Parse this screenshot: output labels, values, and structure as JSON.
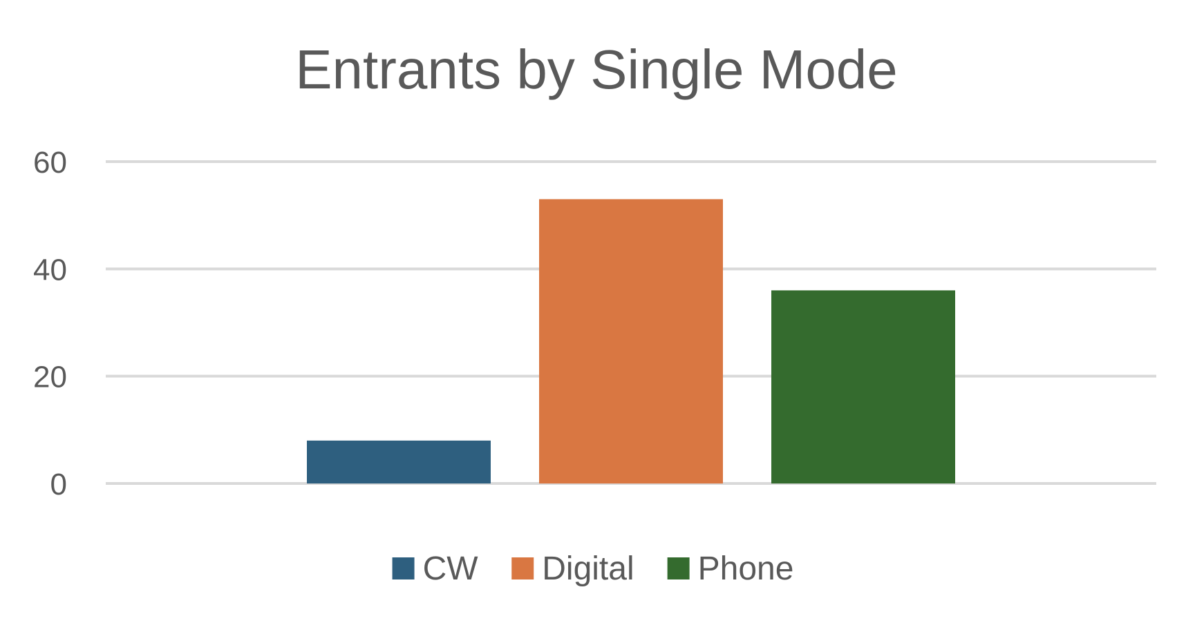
{
  "chart_data": {
    "type": "bar",
    "title": "Entrants by Single Mode",
    "xlabel": "",
    "ylabel": "",
    "ylim": [
      0,
      60
    ],
    "yticks": [
      0,
      20,
      40,
      60
    ],
    "grid": true,
    "legend_position": "bottom",
    "series": [
      {
        "name": "CW",
        "values": [
          8
        ],
        "color": "#2e5f7f"
      },
      {
        "name": "Digital",
        "values": [
          53
        ],
        "color": "#d97742"
      },
      {
        "name": "Phone",
        "values": [
          36
        ],
        "color": "#346b2e"
      }
    ]
  }
}
